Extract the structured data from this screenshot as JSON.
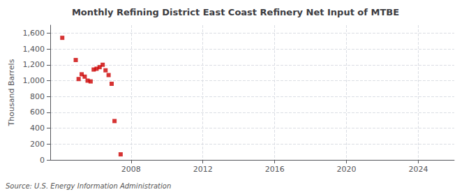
{
  "chart_data": {
    "type": "scatter",
    "title": "Monthly Refining District East Coast Refinery Net Input of MTBE",
    "ylabel": "Thousand Barrels",
    "annotations": [
      "Source: U.S. Energy Information Administration"
    ],
    "x": [
      2004.17,
      2004.92,
      2005.08,
      2005.25,
      2005.42,
      2005.58,
      2005.75,
      2005.92,
      2006.08,
      2006.25,
      2006.42,
      2006.58,
      2006.75,
      2006.92,
      2007.08,
      2007.42
    ],
    "values": [
      1540,
      1260,
      1020,
      1080,
      1050,
      1000,
      990,
      1140,
      1150,
      1170,
      1200,
      1130,
      1070,
      960,
      490,
      70
    ],
    "color": "#cc0000",
    "marker": "square",
    "xlim": [
      2003.5,
      2026
    ],
    "ylim": [
      0,
      1700
    ],
    "xticks": [
      2008,
      2012,
      2016,
      2020,
      2024
    ],
    "yticks": [
      0,
      200,
      400,
      600,
      800,
      {
        "value": 1000,
        "label": "1,000"
      },
      {
        "value": 1200,
        "label": "1,200"
      },
      {
        "value": 1400,
        "label": "1,400"
      },
      {
        "value": 1600,
        "label": "1,600"
      }
    ],
    "grid": true
  }
}
